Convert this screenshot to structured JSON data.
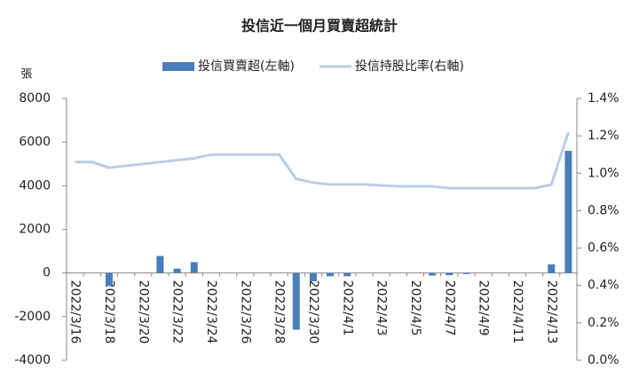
{
  "chart_data": {
    "type": "bar_line",
    "title": "投信近一個月買賣超統計",
    "y_label": "張",
    "categories": [
      "2022/3/16",
      null,
      "2022/3/18",
      null,
      "2022/3/20",
      null,
      "2022/3/22",
      null,
      "2022/3/24",
      null,
      "2022/3/26",
      null,
      "2022/3/28",
      null,
      "2022/3/30",
      null,
      "2022/4/1",
      null,
      "2022/4/3",
      null,
      "2022/4/5",
      null,
      "2022/4/7",
      null,
      "2022/4/9",
      null,
      "2022/4/11",
      null,
      "2022/4/13",
      null
    ],
    "series": [
      {
        "name": "投信買賣超(左軸)",
        "color": "#4a7ebb",
        "type": "bar",
        "axis": "y",
        "values": [
          0,
          0,
          -600,
          0,
          0,
          780,
          200,
          500,
          0,
          0,
          0,
          0,
          0,
          -2600,
          -380,
          -150,
          -150,
          0,
          0,
          0,
          0,
          -120,
          -100,
          -50,
          0,
          0,
          0,
          0,
          400,
          5600
        ]
      },
      {
        "name": "投信持股比率(右軸)",
        "color": "#b9cde5",
        "type": "line",
        "axis": "y2",
        "values": [
          1.06,
          1.06,
          1.03,
          1.04,
          1.05,
          1.06,
          1.07,
          1.08,
          1.1,
          1.1,
          1.1,
          1.1,
          1.1,
          0.97,
          0.95,
          0.94,
          0.94,
          0.94,
          0.935,
          0.93,
          0.93,
          0.93,
          0.92,
          0.92,
          0.92,
          0.92,
          0.92,
          0.92,
          0.94,
          1.22
        ]
      }
    ],
    "ylim": [
      -4000,
      8000
    ],
    "yticks": [
      -4000,
      -2000,
      0,
      2000,
      4000,
      6000,
      8000
    ],
    "y2lim": [
      0,
      1.4
    ],
    "y2ticks": [
      {
        "value": 0,
        "label": "0.0%"
      },
      {
        "value": 0.2,
        "label": "0.2%"
      },
      {
        "value": 0.4,
        "label": "0.4%"
      },
      {
        "value": 0.6,
        "label": "0.6%"
      },
      {
        "value": 0.8,
        "label": "0.8%"
      },
      {
        "value": 1.0,
        "label": "1.0%"
      },
      {
        "value": 1.2,
        "label": "1.2%"
      },
      {
        "value": 1.4,
        "label": "1.4%"
      }
    ],
    "legend": "top"
  }
}
